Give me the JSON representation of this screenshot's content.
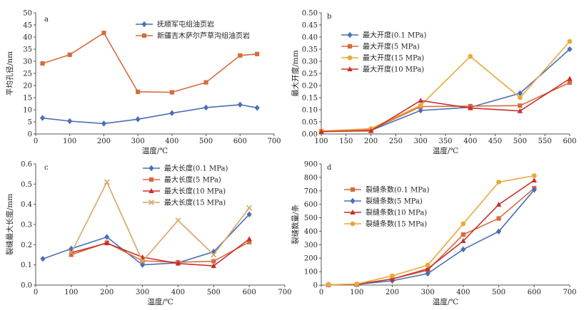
{
  "chart_data": [
    {
      "panel": "a",
      "type": "line",
      "xlabel": "温度/℃",
      "ylabel": "平均孔径/nm",
      "xlim": [
        0,
        700
      ],
      "ylim": [
        0,
        50
      ],
      "xticks": [
        0,
        100,
        200,
        300,
        400,
        500,
        600,
        700
      ],
      "yticks": [
        0,
        5,
        10,
        15,
        20,
        25,
        30,
        35,
        40,
        45,
        50
      ],
      "legend_position": "top-right",
      "series": [
        {
          "name": "抚顺军屯组油页岩",
          "color": "#4a6fb5",
          "marker": "diamond",
          "x": [
            20,
            100,
            200,
            300,
            400,
            500,
            600,
            650
          ],
          "y": [
            6.6,
            5.3,
            4.3,
            6.1,
            8.6,
            10.9,
            12.1,
            10.8
          ]
        },
        {
          "name": "新疆吉木萨尔芦草沟组油页岩",
          "color": "#d46c3f",
          "marker": "square",
          "x": [
            20,
            100,
            200,
            300,
            400,
            500,
            600,
            650
          ],
          "y": [
            29.1,
            32.7,
            41.7,
            17.4,
            17.2,
            21.3,
            32.4,
            33.0
          ]
        }
      ]
    },
    {
      "panel": "b",
      "type": "line",
      "xlabel": "温度/℃",
      "ylabel": "最大开度/mm",
      "xlim": [
        100,
        600
      ],
      "ylim": [
        0,
        0.5
      ],
      "xticks": [
        100,
        150,
        200,
        250,
        300,
        350,
        400,
        450,
        500,
        550,
        600
      ],
      "yticks": [
        0,
        0.05,
        0.1,
        0.15,
        0.2,
        0.25,
        0.3,
        0.35,
        0.4,
        0.45,
        0.5
      ],
      "ytick_decimals": 2,
      "legend_position": "top-left",
      "series": [
        {
          "name": "最大开度(0.1 MPa)",
          "color": "#4a6fb5",
          "marker": "diamond",
          "x": [
            100,
            200,
            300,
            400,
            500,
            600
          ],
          "y": [
            0.01,
            0.015,
            0.097,
            0.11,
            0.168,
            0.35
          ]
        },
        {
          "name": "最大开度(5 MPa)",
          "color": "#d46c3f",
          "marker": "square",
          "x": [
            100,
            200,
            300,
            400,
            500,
            600
          ],
          "y": [
            0.012,
            0.017,
            0.113,
            0.115,
            0.117,
            0.212
          ]
        },
        {
          "name": "最大开度(15 MPa)",
          "color": "#e8a93a",
          "marker": "circle",
          "x": [
            100,
            200,
            300,
            400,
            500,
            600
          ],
          "y": [
            0.012,
            0.022,
            0.118,
            0.32,
            0.15,
            0.382
          ]
        },
        {
          "name": "最大开度(10 MPa)",
          "color": "#c9302c",
          "marker": "triangle",
          "x": [
            100,
            200,
            300,
            400,
            500,
            600
          ],
          "y": [
            0.01,
            0.013,
            0.138,
            0.107,
            0.095,
            0.228
          ]
        }
      ]
    },
    {
      "panel": "c",
      "type": "line",
      "xlabel": "温度/℃",
      "ylabel": "裂缝最大长度/mm",
      "xlim": [
        0,
        700
      ],
      "ylim": [
        0,
        0.6
      ],
      "xticks": [
        0,
        100,
        200,
        300,
        400,
        500,
        600,
        700
      ],
      "yticks": [
        0,
        0.1,
        0.2,
        0.3,
        0.4,
        0.5,
        0.6
      ],
      "ytick_decimals": 1,
      "legend_position": "top-center",
      "series": [
        {
          "name": "最大长度(0.1 MPa)",
          "color": "#4a6fb5",
          "marker": "diamond",
          "x": [
            20,
            100,
            200,
            300,
            400,
            500,
            600
          ],
          "y": [
            0.13,
            0.18,
            0.238,
            0.1,
            0.11,
            0.165,
            0.35
          ]
        },
        {
          "name": "最大长度(5 MPa)",
          "color": "#d46c3f",
          "marker": "square",
          "x": [
            100,
            200,
            300,
            400,
            500,
            600
          ],
          "y": [
            0.15,
            0.21,
            0.12,
            0.113,
            0.118,
            0.213
          ]
        },
        {
          "name": "最大长度(10 MPa)",
          "color": "#c9302c",
          "marker": "triangle",
          "x": [
            100,
            200,
            300,
            400,
            500,
            600
          ],
          "y": [
            0.16,
            0.208,
            0.138,
            0.107,
            0.095,
            0.228
          ]
        },
        {
          "name": "最大长度(15 MPa)",
          "color": "#d9a468",
          "marker": "x",
          "x": [
            100,
            200,
            300,
            400,
            500,
            600
          ],
          "y": [
            0.16,
            0.51,
            0.118,
            0.32,
            0.15,
            0.382
          ]
        }
      ]
    },
    {
      "panel": "d",
      "type": "line",
      "xlabel": "温度/℃",
      "ylabel": "裂缝数量/条",
      "xlim": [
        0,
        700
      ],
      "ylim": [
        0,
        900
      ],
      "xticks": [
        0,
        100,
        200,
        300,
        400,
        500,
        600,
        700
      ],
      "yticks": [
        0,
        100,
        200,
        300,
        400,
        500,
        600,
        700,
        800,
        900
      ],
      "legend_position": "top-left",
      "series": [
        {
          "name": "裂缝条数(0.1 MPa)",
          "color": "#d46c3f",
          "marker": "square",
          "x": [
            20,
            100,
            200,
            300,
            400,
            500,
            600
          ],
          "y": [
            2,
            5,
            45,
            110,
            375,
            495,
            720
          ]
        },
        {
          "name": "裂缝条数(5 MPa)",
          "color": "#4a6fb5",
          "marker": "diamond",
          "x": [
            20,
            100,
            200,
            300,
            400,
            500,
            600
          ],
          "y": [
            2,
            5,
            32,
            85,
            265,
            398,
            708
          ]
        },
        {
          "name": "裂缝条数(10 MPa)",
          "color": "#c9302c",
          "marker": "triangle",
          "x": [
            20,
            100,
            200,
            300,
            400,
            500,
            600
          ],
          "y": [
            2,
            6,
            45,
            120,
            328,
            598,
            778
          ]
        },
        {
          "name": "裂缝条数(15 MPa)",
          "color": "#e8a93a",
          "marker": "circle",
          "x": [
            20,
            100,
            200,
            300,
            400,
            500,
            600
          ],
          "y": [
            2,
            8,
            68,
            148,
            455,
            765,
            812
          ]
        }
      ]
    }
  ]
}
